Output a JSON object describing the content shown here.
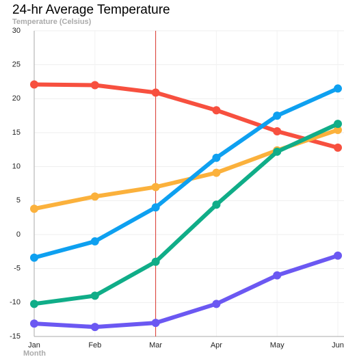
{
  "chart_data": {
    "type": "line",
    "title": "24-hr Average Temperature",
    "y_label": "Temperature (Celsius)",
    "x_label": "Month",
    "categories": [
      "Jan",
      "Feb",
      "Mar",
      "Apr",
      "May",
      "Jun"
    ],
    "series": [
      {
        "color": "#f7503f",
        "values": [
          22.1,
          22.0,
          20.9,
          18.3,
          15.2,
          12.8
        ]
      },
      {
        "color": "#fbb13c",
        "values": [
          3.8,
          5.6,
          7.0,
          9.1,
          12.4,
          15.4
        ]
      },
      {
        "color": "#0ea0f0",
        "values": [
          -3.4,
          -1.0,
          4.0,
          11.3,
          17.5,
          21.5
        ]
      },
      {
        "color": "#10ad88",
        "values": [
          -10.2,
          -9.0,
          -4.0,
          4.4,
          12.2,
          16.3
        ]
      },
      {
        "color": "#6b58f2",
        "values": [
          -13.1,
          -13.6,
          -13.0,
          -10.2,
          -6.0,
          -3.1
        ]
      }
    ],
    "ylim": [
      -15,
      30
    ],
    "yticks": [
      -15,
      -10,
      -5,
      0,
      5,
      10,
      15,
      20,
      25,
      30
    ],
    "grid": true,
    "vline": {
      "x": "Mar",
      "color": "#d9342b"
    }
  }
}
